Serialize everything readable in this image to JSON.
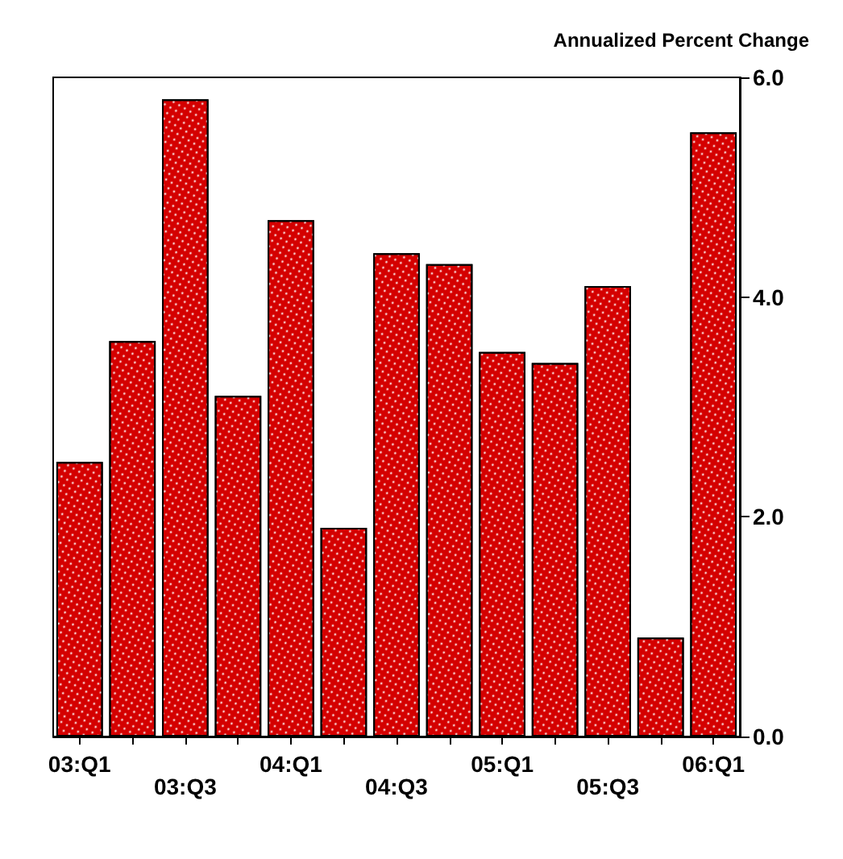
{
  "chart_data": {
    "type": "bar",
    "ylabel": "Annualized Percent Change",
    "categories": [
      "03:Q1",
      null,
      "03:Q3",
      null,
      "04:Q1",
      null,
      "04:Q3",
      null,
      "05:Q1",
      null,
      "05:Q3",
      null,
      "06:Q1"
    ],
    "values": [
      2.5,
      3.6,
      5.8,
      3.1,
      4.7,
      1.9,
      4.4,
      4.3,
      3.5,
      3.4,
      4.1,
      0.9,
      5.5
    ],
    "color": "#d40000",
    "ylim": [
      0,
      6
    ],
    "yticks": [
      {
        "value": 0,
        "label": "0.0"
      },
      {
        "value": 2,
        "label": "2.0"
      },
      {
        "value": 4,
        "label": "4.0"
      },
      {
        "value": 6,
        "label": "6.0"
      }
    ],
    "grid": false
  }
}
